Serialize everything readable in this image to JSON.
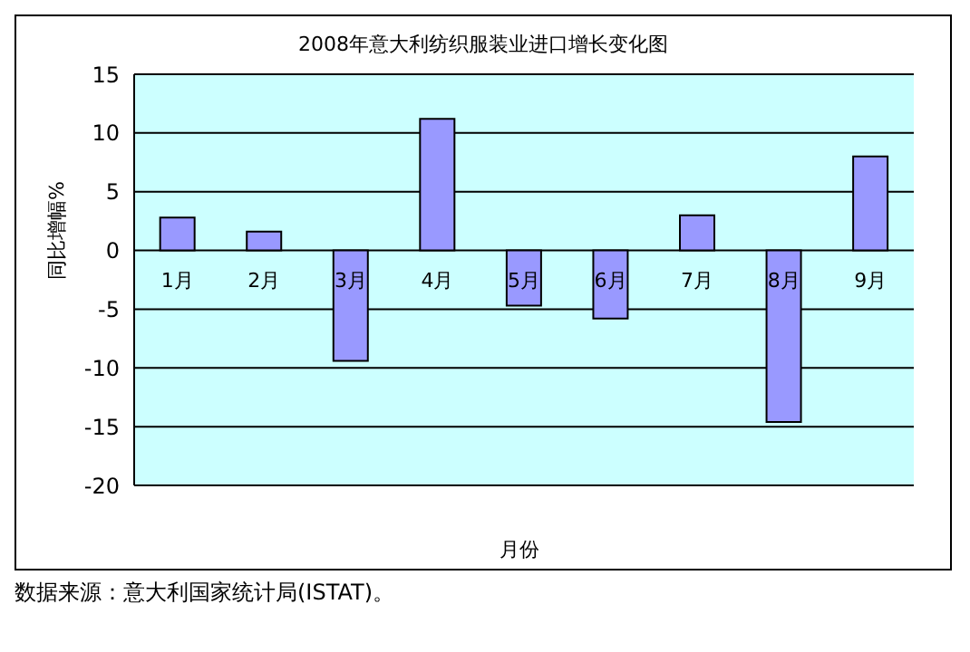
{
  "chart_data": {
    "type": "bar",
    "title": "2008年意大利纺织服装业进口增长变化图",
    "xlabel": "月份",
    "ylabel": "同比增幅%",
    "categories": [
      "1月",
      "2月",
      "3月",
      "4月",
      "5月",
      "6月",
      "7月",
      "8月",
      "9月"
    ],
    "values": [
      2.8,
      1.6,
      -9.4,
      11.2,
      -4.7,
      -5.8,
      3.0,
      -14.6,
      8.0
    ],
    "color": "#9999ff",
    "ylim": [
      -20,
      15
    ],
    "yticks": [
      -20,
      -15,
      -10,
      -5,
      0,
      5,
      10,
      15
    ],
    "grid": "y",
    "annotations": [
      "数据来源：意大利国家统计局(ISTAT)。"
    ]
  }
}
